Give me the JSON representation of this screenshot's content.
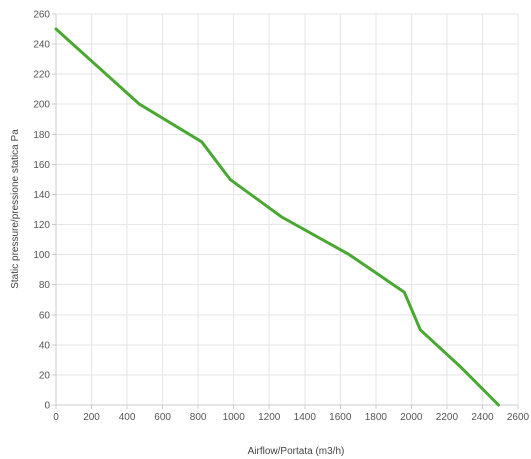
{
  "chart_data": {
    "type": "line",
    "title": "",
    "xlabel": "Airflow/Portata (m3/h)",
    "ylabel": "Static pressure/pressione statica Pa",
    "xlim": [
      0,
      2600
    ],
    "ylim": [
      0,
      260
    ],
    "xticks": [
      "0",
      "200",
      "400",
      "600",
      "800",
      "1000",
      "1200",
      "1400",
      "1600",
      "1800",
      "2000",
      "2200",
      "2400",
      "2600"
    ],
    "yticks": [
      "0",
      "20",
      "40",
      "60",
      "80",
      "100",
      "120",
      "140",
      "160",
      "180",
      "200",
      "220",
      "240",
      "260"
    ],
    "grid": true,
    "legend": "none",
    "series": [
      {
        "color": "#4aa832",
        "x": [
          0,
          470,
          820,
          980,
          1270,
          1650,
          1960,
          2050,
          2280,
          2490
        ],
        "y": [
          250,
          200,
          175,
          150,
          125,
          100,
          75,
          50,
          25,
          0
        ]
      }
    ]
  }
}
